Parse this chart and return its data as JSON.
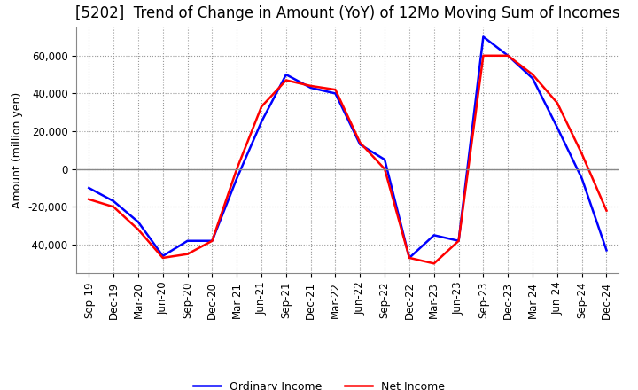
{
  "title": "[5202]  Trend of Change in Amount (YoY) of 12Mo Moving Sum of Incomes",
  "ylabel": "Amount (million yen)",
  "ylim": [
    -55000,
    75000
  ],
  "yticks": [
    -40000,
    -20000,
    0,
    20000,
    40000,
    60000
  ],
  "x_labels": [
    "Sep-19",
    "Dec-19",
    "Mar-20",
    "Jun-20",
    "Sep-20",
    "Dec-20",
    "Mar-21",
    "Jun-21",
    "Sep-21",
    "Dec-21",
    "Mar-22",
    "Jun-22",
    "Sep-22",
    "Dec-22",
    "Mar-23",
    "Jun-23",
    "Sep-23",
    "Dec-23",
    "Mar-24",
    "Jun-24",
    "Sep-24",
    "Dec-24"
  ],
  "ordinary_income": [
    -10000,
    -17000,
    -28000,
    -46000,
    -38000,
    -38000,
    -5000,
    25000,
    50000,
    43000,
    40000,
    13000,
    5000,
    -47000,
    -35000,
    -38000,
    70000,
    60000,
    48000,
    22000,
    -5000,
    -43000
  ],
  "net_income": [
    -16000,
    -20000,
    -32000,
    -47000,
    -45000,
    -38000,
    0,
    33000,
    47000,
    44000,
    42000,
    14000,
    0,
    -47000,
    -50000,
    -38000,
    60000,
    60000,
    50000,
    35000,
    8000,
    -22000
  ],
  "ordinary_color": "#0000FF",
  "net_color": "#FF0000",
  "grid_color": "#999999",
  "zero_line_color": "#888888",
  "background_color": "#FFFFFF",
  "title_fontsize": 12,
  "label_fontsize": 9,
  "tick_fontsize": 8.5
}
